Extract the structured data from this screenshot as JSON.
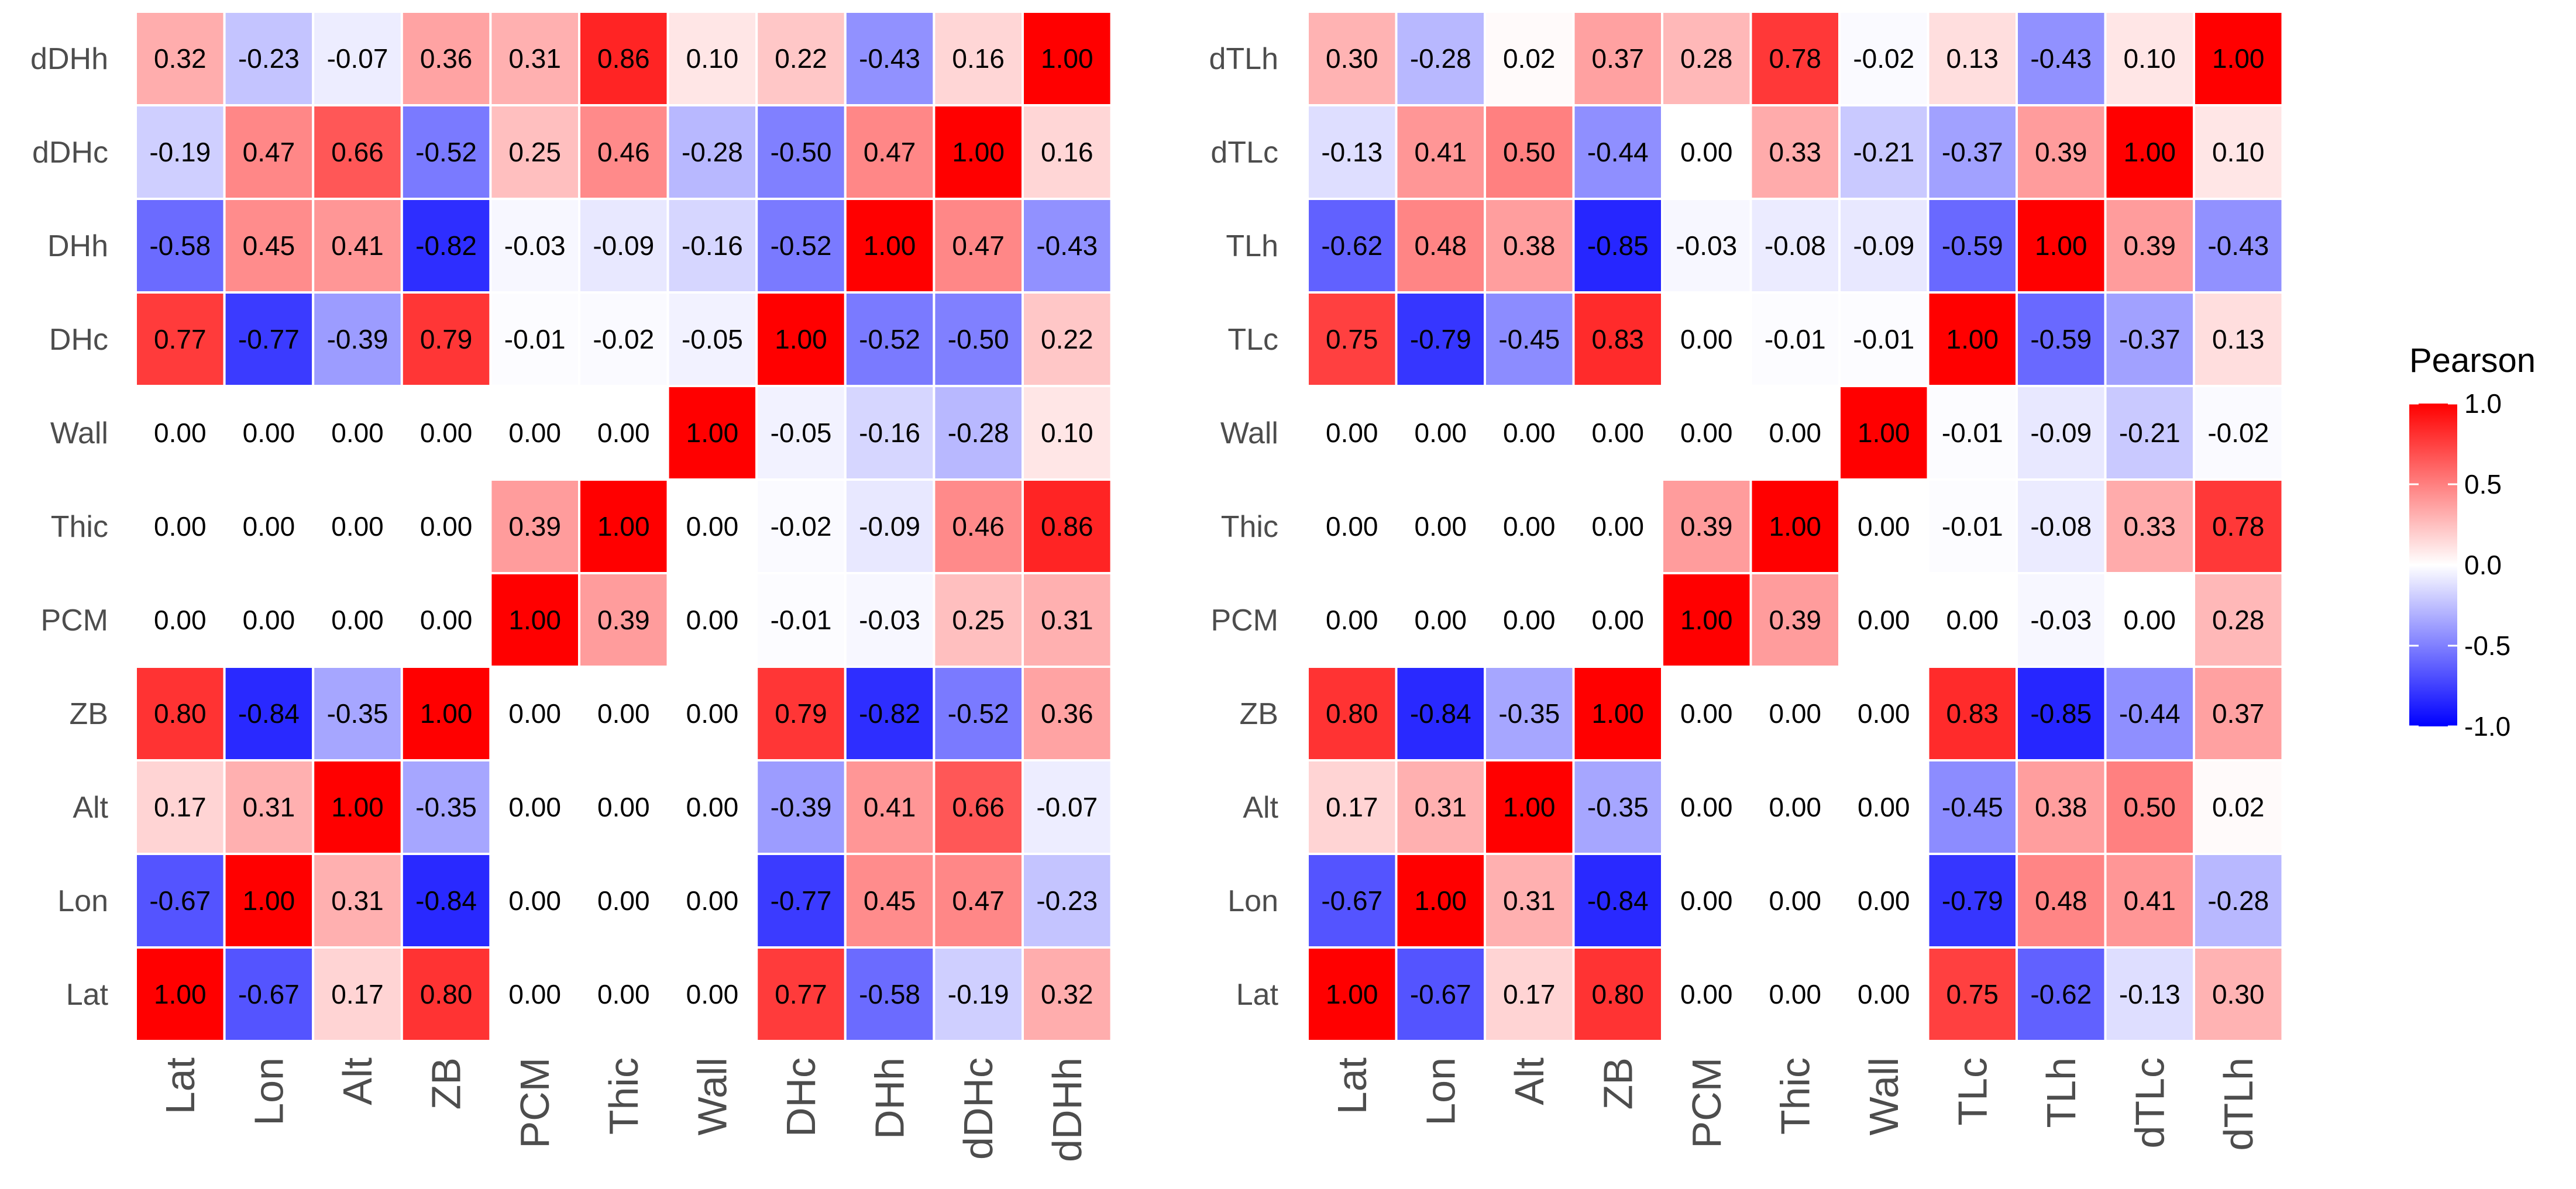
{
  "chart_data": [
    {
      "type": "heatmap",
      "title": "",
      "x_categories": [
        "Lat",
        "Lon",
        "Alt",
        "ZB",
        "PCM",
        "Thic",
        "Wall",
        "DHc",
        "DHh",
        "dDHc",
        "dDHh"
      ],
      "y_categories_top_to_bottom": [
        "dDHh",
        "dDHc",
        "DHh",
        "DHc",
        "Wall",
        "Thic",
        "PCM",
        "ZB",
        "Alt",
        "Lon",
        "Lat"
      ],
      "values": [
        [
          "0.32",
          "-0.23",
          "-0.07",
          "0.36",
          "0.31",
          "0.86",
          "0.10",
          "0.22",
          "-0.43",
          "0.16",
          "1.00"
        ],
        [
          "-0.19",
          "0.47",
          "0.66",
          "-0.52",
          "0.25",
          "0.46",
          "-0.28",
          "-0.50",
          "0.47",
          "1.00",
          "0.16"
        ],
        [
          "-0.58",
          "0.45",
          "0.41",
          "-0.82",
          "-0.03",
          "-0.09",
          "-0.16",
          "-0.52",
          "1.00",
          "0.47",
          "-0.43"
        ],
        [
          "0.77",
          "-0.77",
          "-0.39",
          "0.79",
          "-0.01",
          "-0.02",
          "-0.05",
          "1.00",
          "-0.52",
          "-0.50",
          "0.22"
        ],
        [
          "0.00",
          "0.00",
          "0.00",
          "0.00",
          "0.00",
          "0.00",
          "1.00",
          "-0.05",
          "-0.16",
          "-0.28",
          "0.10"
        ],
        [
          "0.00",
          "0.00",
          "0.00",
          "0.00",
          "0.39",
          "1.00",
          "0.00",
          "-0.02",
          "-0.09",
          "0.46",
          "0.86"
        ],
        [
          "0.00",
          "0.00",
          "0.00",
          "0.00",
          "1.00",
          "0.39",
          "0.00",
          "-0.01",
          "-0.03",
          "0.25",
          "0.31"
        ],
        [
          "0.80",
          "-0.84",
          "-0.35",
          "1.00",
          "0.00",
          "0.00",
          "0.00",
          "0.79",
          "-0.82",
          "-0.52",
          "0.36"
        ],
        [
          "0.17",
          "0.31",
          "1.00",
          "-0.35",
          "0.00",
          "0.00",
          "0.00",
          "-0.39",
          "0.41",
          "0.66",
          "-0.07"
        ],
        [
          "-0.67",
          "1.00",
          "0.31",
          "-0.84",
          "0.00",
          "0.00",
          "0.00",
          "-0.77",
          "0.45",
          "0.47",
          "-0.23"
        ],
        [
          "1.00",
          "-0.67",
          "0.17",
          "0.80",
          "0.00",
          "0.00",
          "0.00",
          "0.77",
          "-0.58",
          "-0.19",
          "0.32"
        ]
      ]
    },
    {
      "type": "heatmap",
      "title": "",
      "x_categories": [
        "Lat",
        "Lon",
        "Alt",
        "ZB",
        "PCM",
        "Thic",
        "Wall",
        "TLc",
        "TLh",
        "dTLc",
        "dTLh"
      ],
      "y_categories_top_to_bottom": [
        "dTLh",
        "dTLc",
        "TLh",
        "TLc",
        "Wall",
        "Thic",
        "PCM",
        "ZB",
        "Alt",
        "Lon",
        "Lat"
      ],
      "values": [
        [
          "0.30",
          "-0.28",
          "0.02",
          "0.37",
          "0.28",
          "0.78",
          "-0.02",
          "0.13",
          "-0.43",
          "0.10",
          "1.00"
        ],
        [
          "-0.13",
          "0.41",
          "0.50",
          "-0.44",
          "0.00",
          "0.33",
          "-0.21",
          "-0.37",
          "0.39",
          "1.00",
          "0.10"
        ],
        [
          "-0.62",
          "0.48",
          "0.38",
          "-0.85",
          "-0.03",
          "-0.08",
          "-0.09",
          "-0.59",
          "1.00",
          "0.39",
          "-0.43"
        ],
        [
          "0.75",
          "-0.79",
          "-0.45",
          "0.83",
          "0.00",
          "-0.01",
          "-0.01",
          "1.00",
          "-0.59",
          "-0.37",
          "0.13"
        ],
        [
          "0.00",
          "0.00",
          "0.00",
          "0.00",
          "0.00",
          "0.00",
          "1.00",
          "-0.01",
          "-0.09",
          "-0.21",
          "-0.02"
        ],
        [
          "0.00",
          "0.00",
          "0.00",
          "0.00",
          "0.39",
          "1.00",
          "0.00",
          "-0.01",
          "-0.08",
          "0.33",
          "0.78"
        ],
        [
          "0.00",
          "0.00",
          "0.00",
          "0.00",
          "1.00",
          "0.39",
          "0.00",
          "0.00",
          "-0.03",
          "0.00",
          "0.28"
        ],
        [
          "0.80",
          "-0.84",
          "-0.35",
          "1.00",
          "0.00",
          "0.00",
          "0.00",
          "0.83",
          "-0.85",
          "-0.44",
          "0.37"
        ],
        [
          "0.17",
          "0.31",
          "1.00",
          "-0.35",
          "0.00",
          "0.00",
          "0.00",
          "-0.45",
          "0.38",
          "0.50",
          "0.02"
        ],
        [
          "-0.67",
          "1.00",
          "0.31",
          "-0.84",
          "0.00",
          "0.00",
          "0.00",
          "-0.79",
          "0.48",
          "0.41",
          "-0.28"
        ],
        [
          "1.00",
          "-0.67",
          "0.17",
          "0.80",
          "0.00",
          "0.00",
          "0.00",
          "0.75",
          "-0.62",
          "-0.13",
          "0.30"
        ]
      ]
    }
  ],
  "legend": {
    "title": "Pearson",
    "ticks": [
      "1.0",
      "0.5",
      "0.0",
      "-0.5",
      "-1.0"
    ],
    "tick_values": [
      1.0,
      0.5,
      0.0,
      -0.5,
      -1.0
    ],
    "range": [
      -1.0,
      1.0
    ],
    "colors": {
      "low": "#0000ff",
      "mid": "#ffffff",
      "high": "#ff0000"
    }
  },
  "colors": {
    "grid_line": "#ffffff",
    "label_text": "#4d4d4d"
  }
}
